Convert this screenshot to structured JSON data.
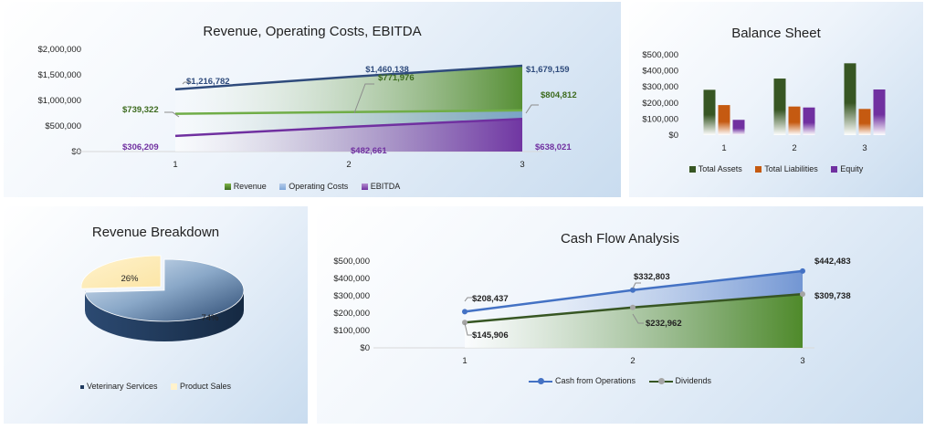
{
  "colors": {
    "revenue": "#3d6b1e",
    "revenue_light": "#7fb548",
    "opcost": "#7ea6d8",
    "ebitda": "#7030a0",
    "rev_line": "#2f4b7c",
    "op_line": "#70ad47",
    "eb_line": "#7030a0",
    "assets": "#375623",
    "liabilities": "#c55a11",
    "equity": "#7030a0",
    "pie_a": "#1f3a5f",
    "pie_b": "#fff2cc",
    "cfo": "#4472c4",
    "div": "#375623",
    "div_marker": "#a5a5a5"
  },
  "chart_data": [
    {
      "id": "rev",
      "type": "area",
      "title": "Revenue, Operating Costs, EBITDA",
      "x": [
        "1",
        "2",
        "3"
      ],
      "yticks": [
        "$2,000,000",
        "$1,500,000",
        "$1,000,000",
        "$500,000",
        "$0"
      ],
      "ylim": [
        0,
        2000000
      ],
      "series": [
        {
          "name": "Revenue",
          "values": [
            1216782,
            1460138,
            1679159
          ],
          "labels": [
            "$1,216,782",
            "$1,460,138",
            "$1,679,159"
          ]
        },
        {
          "name": "Operating Costs",
          "values": [
            739322,
            771976,
            804812
          ],
          "labels": [
            "$739,322",
            "$771,976",
            "$804,812"
          ]
        },
        {
          "name": "EBITDA",
          "values": [
            306209,
            482661,
            638021
          ],
          "labels": [
            "$306,209",
            "$482,661",
            "$638,021"
          ]
        }
      ],
      "legend": "bottom"
    },
    {
      "id": "bs",
      "type": "bar",
      "title": "Balance Sheet",
      "categories": [
        "1",
        "2",
        "3"
      ],
      "yticks": [
        "$500,000",
        "$400,000",
        "$300,000",
        "$200,000",
        "$100,000",
        "$0"
      ],
      "ylim": [
        0,
        500000
      ],
      "series": [
        {
          "name": "Total Assets",
          "values": [
            282000,
            352000,
            447000
          ]
        },
        {
          "name": "Total Liabilities",
          "values": [
            187000,
            178000,
            163000
          ]
        },
        {
          "name": "Equity",
          "values": [
            95000,
            172000,
            284000
          ]
        }
      ],
      "legend": "bottom"
    },
    {
      "id": "pie",
      "type": "pie",
      "title": "Revenue Breakdown",
      "slices": [
        {
          "name": "Veterinary Services",
          "value": 74,
          "label": "74%"
        },
        {
          "name": "Product Sales",
          "value": 26,
          "label": "26%"
        }
      ],
      "legend": "bottom"
    },
    {
      "id": "cf",
      "type": "line",
      "title": "Cash Flow Analysis",
      "x": [
        "1",
        "2",
        "3"
      ],
      "yticks": [
        "$500,000",
        "$400,000",
        "$300,000",
        "$200,000",
        "$100,000",
        "$0"
      ],
      "ylim": [
        0,
        500000
      ],
      "series": [
        {
          "name": "Cash from Operations",
          "values": [
            208437,
            332803,
            442483
          ],
          "labels": [
            "$208,437",
            "$332,803",
            "$442,483"
          ]
        },
        {
          "name": "Dividends",
          "values": [
            145906,
            232962,
            309738
          ],
          "labels": [
            "$145,906",
            "$232,962",
            "$309,738"
          ]
        }
      ],
      "legend": "bottom"
    }
  ]
}
